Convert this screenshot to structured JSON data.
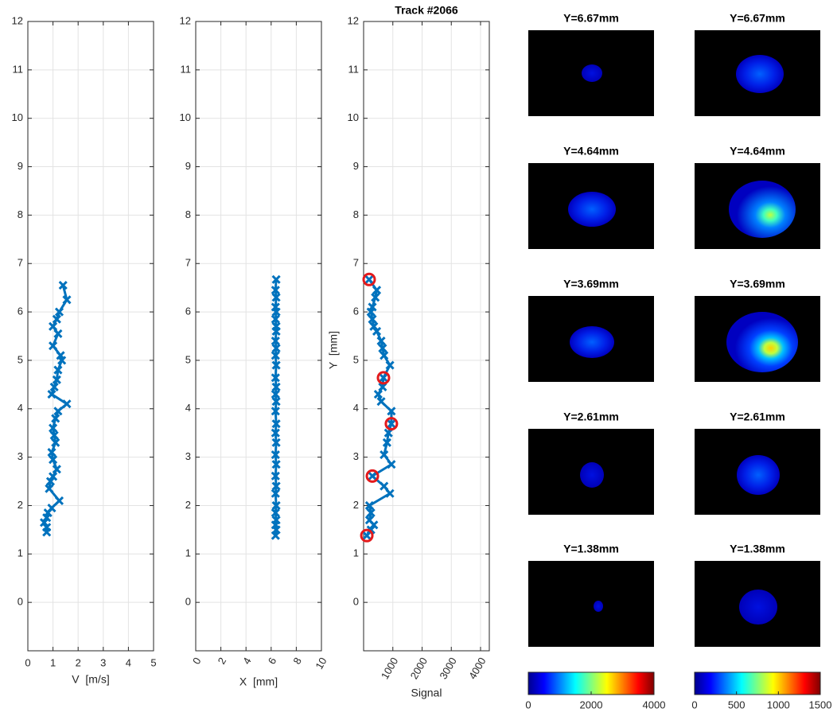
{
  "chart_data": [
    {
      "type": "line",
      "xlabel": "V  [m/s]",
      "xlim": [
        0,
        5
      ],
      "xticks": [
        0,
        1,
        2,
        3,
        4,
        5
      ],
      "ylim": [
        -1,
        12
      ],
      "yticks": [
        0,
        1,
        2,
        3,
        4,
        5,
        6,
        7,
        8,
        9,
        10,
        11,
        12
      ],
      "grid": true,
      "color": "#0072bd",
      "marker": "x",
      "x": [
        1.4,
        1.55,
        1.25,
        1.15,
        1.0,
        1.2,
        1.0,
        1.3,
        1.35,
        1.2,
        1.15,
        1.05,
        0.95,
        1.55,
        1.2,
        1.1,
        1.0,
        1.05,
        1.1,
        0.95,
        1.0,
        1.15,
        1.0,
        0.9,
        0.85,
        1.25,
        0.95,
        0.8,
        0.75,
        0.65,
        0.75,
        0.75
      ],
      "y": [
        6.55,
        6.25,
        6.0,
        5.85,
        5.7,
        5.55,
        5.3,
        5.1,
        5.0,
        4.8,
        4.6,
        4.45,
        4.3,
        4.1,
        3.95,
        3.8,
        3.6,
        3.45,
        3.3,
        3.1,
        2.95,
        2.75,
        2.6,
        2.5,
        2.35,
        2.1,
        1.95,
        1.85,
        1.75,
        1.65,
        1.55,
        1.45
      ]
    },
    {
      "type": "line",
      "xlabel": "X  [mm]",
      "xlim": [
        0,
        10
      ],
      "xticks": [
        0,
        2,
        4,
        6,
        8,
        10
      ],
      "ylim": [
        -1,
        12
      ],
      "yticks": [
        0,
        1,
        2,
        3,
        4,
        5,
        6,
        7,
        8,
        9,
        10,
        11,
        12
      ],
      "grid": true,
      "color": "#0072bd",
      "marker": "x",
      "x": [
        6.4,
        6.35,
        6.4,
        6.35,
        6.4,
        6.35,
        6.4,
        6.4,
        6.35,
        6.4,
        6.35,
        6.4,
        6.35,
        6.4,
        6.35,
        6.4,
        6.35,
        6.4,
        6.35,
        6.4,
        6.35,
        6.4,
        6.35,
        6.4,
        6.35,
        6.4,
        6.35,
        6.4,
        6.35,
        6.4,
        6.35
      ],
      "y": [
        6.67,
        6.45,
        6.3,
        6.1,
        6.0,
        5.85,
        5.7,
        5.6,
        5.4,
        5.25,
        5.1,
        4.9,
        4.64,
        4.45,
        4.3,
        4.15,
        3.95,
        3.69,
        3.5,
        3.3,
        3.05,
        2.85,
        2.61,
        2.4,
        2.25,
        2.0,
        1.85,
        1.7,
        1.6,
        1.5,
        1.38
      ]
    },
    {
      "type": "line",
      "title": "Track #2066",
      "xlabel": "Signal",
      "ylabel": "Y  [mm]",
      "xlim": [
        0,
        4300
      ],
      "xticks": [
        1000,
        2000,
        3000,
        4000
      ],
      "ylim": [
        -1,
        12
      ],
      "yticks": [
        0,
        1,
        2,
        3,
        4,
        5,
        6,
        7,
        8,
        9,
        10,
        11,
        12
      ],
      "grid": true,
      "color": "#0072bd",
      "marker": "x",
      "x": [
        190,
        450,
        400,
        300,
        250,
        300,
        350,
        450,
        600,
        650,
        700,
        900,
        680,
        650,
        500,
        600,
        950,
        950,
        850,
        800,
        700,
        950,
        300,
        700,
        900,
        200,
        250,
        200,
        350,
        250,
        110
      ],
      "y": [
        6.67,
        6.45,
        6.3,
        6.1,
        6.0,
        5.85,
        5.7,
        5.6,
        5.4,
        5.25,
        5.1,
        4.9,
        4.64,
        4.45,
        4.3,
        4.15,
        3.95,
        3.69,
        3.5,
        3.3,
        3.05,
        2.85,
        2.61,
        2.4,
        2.25,
        2.0,
        1.85,
        1.7,
        1.6,
        1.5,
        1.38
      ],
      "highlight": {
        "color": "#e31a1c",
        "x": [
          190,
          680,
          950,
          300,
          110
        ],
        "y": [
          6.67,
          4.64,
          3.69,
          2.61,
          1.38
        ]
      }
    },
    {
      "type": "image",
      "titles": [
        "Y=6.67mm",
        "Y=4.64mm",
        "Y=3.69mm",
        "Y=2.61mm",
        "Y=1.38mm"
      ],
      "colorbar": {
        "lim": [
          0,
          4000
        ],
        "ticks": [
          0,
          2000,
          4000
        ]
      }
    },
    {
      "type": "image",
      "titles": [
        "Y=6.67mm",
        "Y=4.64mm",
        "Y=3.69mm",
        "Y=2.61mm",
        "Y=1.38mm"
      ],
      "colorbar": {
        "lim": [
          0,
          1500
        ],
        "ticks": [
          0,
          500,
          1000,
          1500
        ]
      }
    }
  ]
}
